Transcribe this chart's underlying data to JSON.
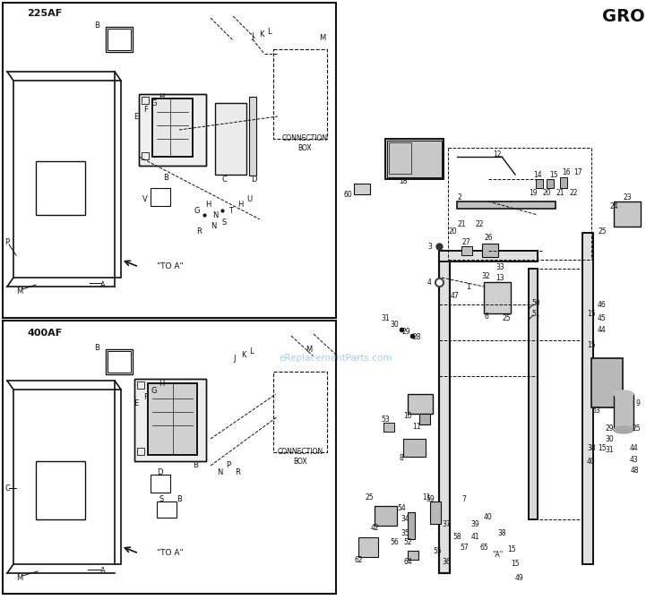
{
  "title": "GRO",
  "background": "#ffffff",
  "fig_width": 7.5,
  "fig_height": 6.7,
  "watermark": "eReplacementParts.com",
  "box1_label": "225AF",
  "box2_label": "400AF",
  "connection_box_label": "CONNECTION\nBOX",
  "to_a_label": "\"TO A\"",
  "label_A": "A",
  "label_M": "M",
  "label_P": "P",
  "label_C": "C"
}
